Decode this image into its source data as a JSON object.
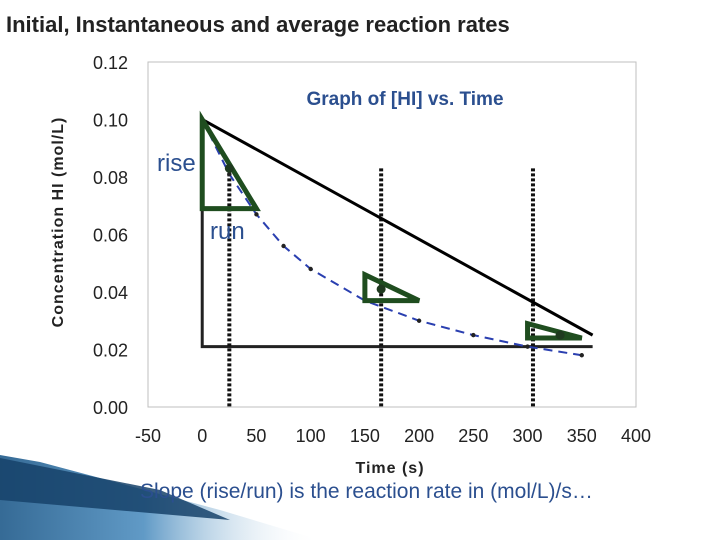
{
  "slide": {
    "title": "Initial, Instantaneous and average reaction rates",
    "caption": "Slope (rise/run) is the reaction rate in (mol/L)/s…",
    "annotations": {
      "rise": "rise",
      "run": "run"
    }
  },
  "colors": {
    "curve": "#2a3fb0",
    "tangent": "#1f4d1f",
    "secant": "#000000",
    "text_blue": "#2b4f8f",
    "footer_blue": "#1f5a8a"
  },
  "chart_data": {
    "type": "line",
    "title": "Graph of [HI] vs. Time",
    "xlabel": "Time (s)",
    "ylabel": "Concentration HI (mol/L)",
    "xlim": [
      -50,
      400
    ],
    "ylim": [
      0.0,
      0.12
    ],
    "x_ticks": [
      "-50",
      "0",
      "50",
      "100",
      "150",
      "200",
      "250",
      "300",
      "350",
      "400"
    ],
    "y_ticks": [
      "0.12",
      "0.10",
      "0.08",
      "0.06",
      "0.04",
      "0.02",
      "0.00"
    ],
    "series": [
      {
        "style": "dashed-curve",
        "x": [
          0,
          25,
          50,
          75,
          100,
          150,
          200,
          250,
          300,
          350
        ],
        "y": [
          0.1,
          0.081,
          0.067,
          0.056,
          0.048,
          0.037,
          0.03,
          0.025,
          0.021,
          0.018
        ]
      }
    ],
    "average_rate_line": {
      "x": [
        0,
        360
      ],
      "y": [
        0.1,
        0.025
      ]
    },
    "tangents": [
      {
        "x": [
          0,
          50
        ],
        "y": [
          0.1,
          0.069
        ]
      },
      {
        "x": [
          150,
          200
        ],
        "y": [
          0.046,
          0.037
        ]
      },
      {
        "x": [
          300,
          350
        ],
        "y": [
          0.029,
          0.024
        ]
      }
    ],
    "highlight_points": [
      {
        "x": 25,
        "y": 0.083
      },
      {
        "x": 165,
        "y": 0.041
      },
      {
        "x": 330,
        "y": 0.025
      }
    ],
    "reference_lines": [
      25,
      165,
      305
    ]
  }
}
